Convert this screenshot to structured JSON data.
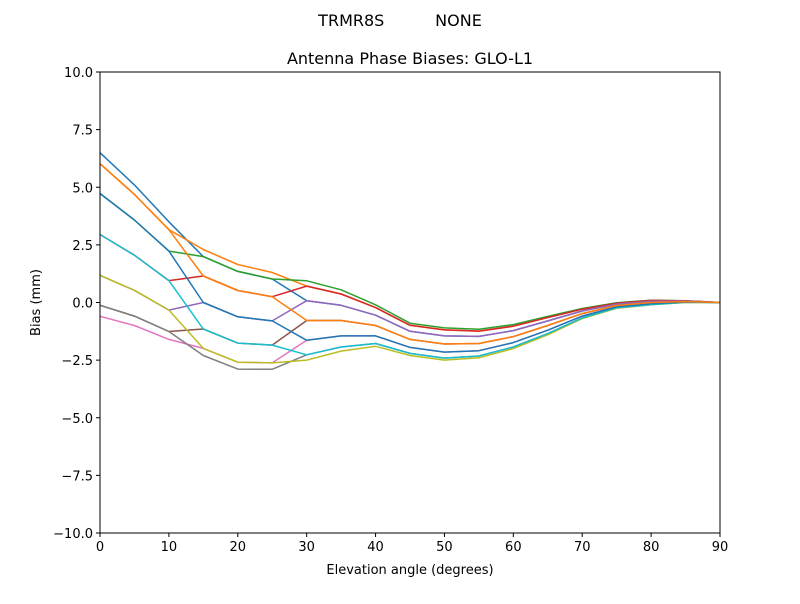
{
  "figure": {
    "suptitle": "TRMR8S          NONE"
  },
  "chart_data": {
    "type": "line",
    "title": "Antenna Phase Biases: GLO-L1",
    "xlabel": "Elevation angle (degrees)",
    "ylabel": "Bias (mm)",
    "xlim": [
      0,
      90
    ],
    "ylim": [
      -10,
      10
    ],
    "xticks": [
      0,
      10,
      20,
      30,
      40,
      50,
      60,
      70,
      80,
      90
    ],
    "yticks": [
      -10.0,
      -7.5,
      -5.0,
      -2.5,
      0.0,
      2.5,
      5.0,
      7.5,
      10.0
    ],
    "ytick_labels": [
      "−10.0",
      "−7.5",
      "−5.0",
      "−2.5",
      "0.0",
      "2.5",
      "5.0",
      "7.5",
      "10.0"
    ],
    "xtick_labels": [
      "0",
      "10",
      "20",
      "30",
      "40",
      "50",
      "60",
      "70",
      "80",
      "90"
    ],
    "grid": false,
    "legend": "none",
    "color_cycle": [
      "#1f77b4",
      "#ff7f0e",
      "#2ca02c",
      "#d62728",
      "#9467bd",
      "#8c564b",
      "#e377c2",
      "#7f7f7f",
      "#bcbd22",
      "#17becf"
    ],
    "x": [
      0,
      5,
      10,
      15,
      20,
      25,
      30,
      35,
      40,
      45,
      50,
      55,
      60,
      65,
      70,
      75,
      80,
      85,
      90
    ],
    "series": [
      {
        "values": [
          6.5,
          5.1,
          3.5,
          1.99,
          1.35,
          1.02,
          0.08,
          -0.12,
          -0.55,
          -1.25,
          -1.45,
          -1.47,
          -1.22,
          -0.8,
          -0.37,
          -0.07,
          0.05,
          0.06,
          0
        ]
      },
      {
        "values": [
          6.02,
          4.69,
          3.16,
          2.3,
          1.65,
          1.3,
          0.71,
          0.37,
          -0.22,
          -0.99,
          -1.19,
          -1.24,
          -1.03,
          -0.65,
          -0.29,
          -0.03,
          0.09,
          0.07,
          0
        ]
      },
      {
        "values": [
          4.73,
          3.58,
          2.23,
          1.99,
          1.35,
          1.02,
          0.94,
          0.55,
          -0.1,
          -0.9,
          -1.1,
          -1.16,
          -0.96,
          -0.6,
          -0.26,
          -0.01,
          0.1,
          0.08,
          0
        ]
      },
      {
        "values": [
          2.95,
          2.05,
          0.95,
          1.15,
          0.52,
          0.25,
          0.71,
          0.37,
          -0.22,
          -0.99,
          -1.19,
          -1.24,
          -1.03,
          -0.65,
          -0.29,
          -0.03,
          0.09,
          0.07,
          0
        ]
      },
      {
        "values": [
          1.18,
          0.53,
          -0.33,
          0,
          -0.62,
          -0.8,
          0.08,
          -0.12,
          -0.55,
          -1.25,
          -1.45,
          -1.47,
          -1.22,
          -0.8,
          -0.37,
          -0.07,
          0.05,
          0.06,
          0
        ]
      },
      {
        "values": [
          -0.12,
          -0.59,
          -1.26,
          -1.15,
          -1.76,
          -1.85,
          -0.78,
          -0.78,
          -1.0,
          -1.6,
          -1.8,
          -1.78,
          -1.48,
          -1.0,
          -0.48,
          -0.13,
          0,
          0.04,
          0
        ]
      },
      {
        "values": [
          -0.6,
          -1.0,
          -1.6,
          -1.99,
          -2.59,
          -2.62,
          -1.64,
          -1.45,
          -1.45,
          -1.95,
          -2.15,
          -2.09,
          -1.74,
          -1.2,
          -0.59,
          -0.19,
          -0.05,
          0.02,
          0
        ]
      },
      {
        "values": [
          -0.12,
          -0.59,
          -1.26,
          -2.3,
          -2.89,
          -2.9,
          -2.27,
          -1.93,
          -1.78,
          -2.21,
          -2.41,
          -2.32,
          -1.93,
          -1.35,
          -0.67,
          -0.23,
          -0.09,
          0.01,
          0
        ]
      },
      {
        "values": [
          1.18,
          0.53,
          -0.33,
          -1.99,
          -2.59,
          -2.62,
          -2.5,
          -2.11,
          -1.9,
          -2.3,
          -2.5,
          -2.4,
          -2.0,
          -1.4,
          -0.7,
          -0.25,
          -0.1,
          0,
          0
        ]
      },
      {
        "values": [
          2.95,
          2.05,
          0.95,
          -1.15,
          -1.76,
          -1.85,
          -2.27,
          -1.93,
          -1.78,
          -2.21,
          -2.41,
          -2.32,
          -1.93,
          -1.35,
          -0.67,
          -0.23,
          -0.09,
          0.01,
          0
        ]
      },
      {
        "values": [
          4.73,
          3.58,
          2.23,
          0,
          -0.62,
          -0.8,
          -1.64,
          -1.45,
          -1.45,
          -1.95,
          -2.15,
          -2.09,
          -1.74,
          -1.2,
          -0.59,
          -0.19,
          -0.05,
          0.02,
          0
        ]
      },
      {
        "values": [
          6.02,
          4.69,
          3.16,
          1.15,
          0.52,
          0.25,
          -0.78,
          -0.78,
          -1.0,
          -1.6,
          -1.8,
          -1.78,
          -1.48,
          -1.0,
          -0.48,
          -0.13,
          0,
          0.04,
          0
        ]
      }
    ]
  }
}
